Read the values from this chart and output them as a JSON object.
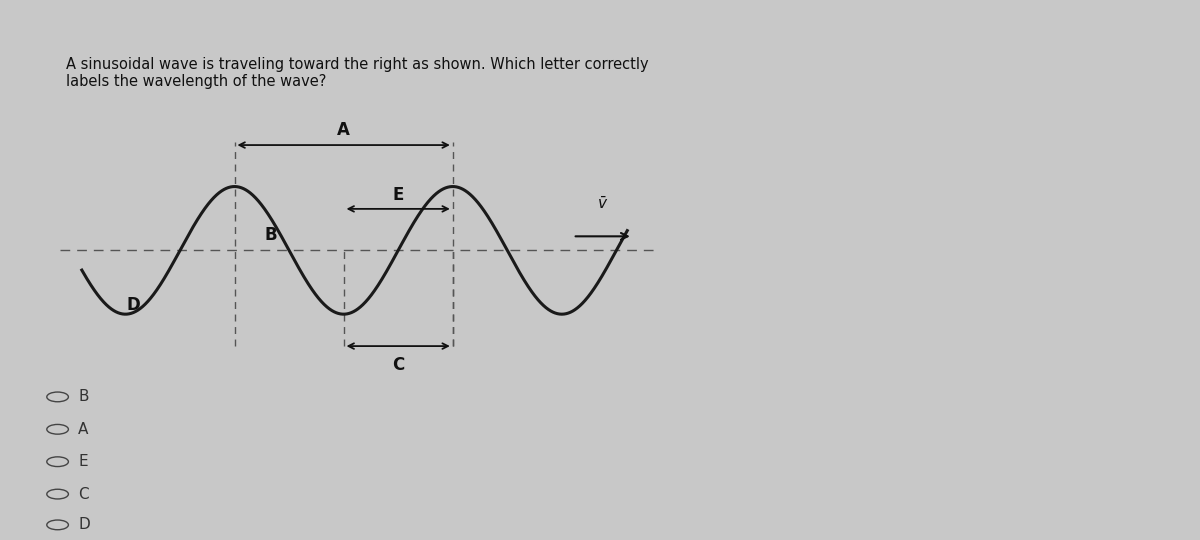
{
  "title_text": "A sinusoidal wave is traveling toward the right as shown. Which letter correctly\nlabels the wavelength of the wave?",
  "screen_bg": "#c8c8c8",
  "panel_bg": "#e8e8e8",
  "wall_color": "#9b8b75",
  "bezel_color": "#2a2a2a",
  "header_color": "#5a5a6a",
  "white_box_color": "#f0f0f0",
  "wave_color": "#1a1a1a",
  "dashed_color": "#555555",
  "label_color": "#111111",
  "answer_choices": [
    "B",
    "A",
    "E",
    "C",
    "D"
  ],
  "wave_amplitude": 1.0,
  "wave_period": 4.0
}
